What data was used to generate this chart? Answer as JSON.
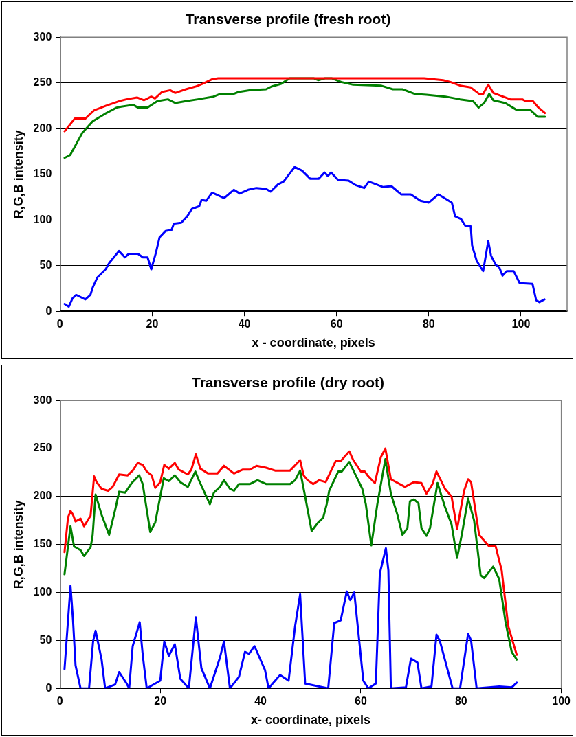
{
  "chart_data": [
    {
      "type": "line",
      "title": "Transverse profile (fresh root)",
      "xlabel": "x - coordinate, pixels",
      "ylabel": "R,G,B intensity",
      "xlim": [
        0,
        110
      ],
      "xticks": [
        0,
        20,
        40,
        60,
        80,
        100
      ],
      "ylim": [
        0,
        300
      ],
      "yticks": [
        0,
        50,
        100,
        150,
        200,
        250,
        300
      ],
      "grid": "y",
      "legend": false,
      "marker": "none",
      "line_style": "solid",
      "series": [
        {
          "color": "#ff0000",
          "x": [
            1,
            3.2,
            5.5,
            7.4,
            10,
            12.8,
            14.4,
            16.7,
            18.2,
            19.8,
            20.6,
            22.1,
            23.9,
            25,
            27.3,
            29.4,
            30.9,
            33,
            34.3,
            79,
            83.1,
            84.7,
            86.8,
            89.1,
            90.9,
            91.8,
            92.9,
            94,
            95.6,
            97.7,
            100.3,
            101,
            102.6,
            103.6,
            105.2
          ],
          "values": [
            197,
            211,
            211,
            220,
            225,
            230,
            232,
            234,
            231,
            235,
            233,
            240,
            242,
            239,
            243,
            246,
            249,
            254,
            255,
            255,
            253,
            251,
            247,
            245,
            238,
            238,
            248,
            239,
            236,
            232,
            232,
            230,
            230,
            224,
            217
          ]
        },
        {
          "color": "#008000",
          "x": [
            1,
            2.2,
            3.2,
            4.8,
            7.1,
            9.7,
            12.3,
            13.3,
            15.9,
            16.9,
            19,
            21.1,
            23.4,
            25,
            27.3,
            29.9,
            33.3,
            34.8,
            37.7,
            38.7,
            41.3,
            44.7,
            45.9,
            48,
            49.8,
            55.1,
            56,
            57.5,
            59,
            61,
            63.6,
            69.6,
            72.2,
            74.3,
            76.9,
            79.5,
            83.6,
            86.8,
            89.6,
            90.8,
            92,
            93.1,
            94,
            96.6,
            99.2,
            102.1,
            103.6,
            105.2
          ],
          "values": [
            168,
            171,
            180,
            195,
            208,
            216,
            223,
            224,
            226,
            223,
            223,
            230,
            232,
            228,
            230,
            232,
            235,
            238,
            238,
            240,
            242,
            243,
            246,
            249,
            255,
            255,
            253,
            255,
            255,
            251,
            248,
            247,
            243,
            243,
            238,
            237,
            235,
            232,
            230,
            223,
            228,
            238,
            231,
            228,
            220,
            220,
            213,
            213
          ]
        },
        {
          "color": "#0000ff",
          "x": [
            1,
            1.9,
            2.7,
            3.5,
            5.5,
            6.6,
            7.1,
            8.1,
            9.9,
            10.7,
            12.8,
            14.1,
            14.9,
            16.9,
            18,
            19,
            19.8,
            20.8,
            21.6,
            22.9,
            24.2,
            24.7,
            26.3,
            27.6,
            28.6,
            30.2,
            30.7,
            31.7,
            33,
            35.6,
            37.7,
            39,
            40.8,
            42.6,
            44.7,
            45.7,
            47.3,
            48.5,
            50.9,
            52.5,
            54.3,
            56.1,
            57.4,
            58.1,
            58.8,
            60.3,
            62.6,
            64.2,
            66,
            67,
            68.6,
            70.1,
            71.9,
            74,
            76.1,
            78.2,
            80,
            82.1,
            85,
            85.7,
            87,
            88,
            89.1,
            89.4,
            90.4,
            91.8,
            92.9,
            93.5,
            94.5,
            95.3,
            96,
            96.9,
            98.4,
            99.7,
            102.5,
            103.3,
            104,
            105.1
          ],
          "values": [
            8,
            5,
            14,
            18,
            13,
            18,
            26,
            37,
            46,
            53,
            66,
            59,
            63,
            63,
            59,
            59,
            46,
            64,
            81,
            88,
            89,
            96,
            97,
            104,
            112,
            115,
            122,
            121,
            130,
            124,
            133,
            129,
            133,
            135,
            134,
            131,
            139,
            142,
            158,
            154,
            145,
            145,
            152,
            148,
            152,
            144,
            143,
            138,
            135,
            142,
            139,
            136,
            137,
            128,
            128,
            121,
            119,
            128,
            119,
            104,
            101,
            93,
            93,
            72,
            55,
            44,
            77,
            61,
            51,
            48,
            39,
            44,
            44,
            31,
            30,
            12,
            10,
            13
          ]
        }
      ]
    },
    {
      "type": "line",
      "title": "Transverse profile (dry root)",
      "xlabel": "x- coordinate, pixels",
      "ylabel": "R,G,B intensity",
      "xlim": [
        0,
        100
      ],
      "xticks": [
        0,
        20,
        40,
        60,
        80,
        100
      ],
      "ylim": [
        0,
        300
      ],
      "yticks": [
        0,
        50,
        100,
        150,
        200,
        250,
        300
      ],
      "grid": "y",
      "legend": false,
      "marker": "none",
      "line_style": "solid",
      "series": [
        {
          "color": "#ff0000",
          "x": [
            0.9,
            1.6,
            2.1,
            2.6,
            3.1,
            4.1,
            4.8,
            6.1,
            6.8,
            7.3,
            8.3,
            9.6,
            10.5,
            11.8,
            13.5,
            14.5,
            15.5,
            16.5,
            17.3,
            18.3,
            19,
            20,
            20.8,
            21.7,
            22.9,
            23.7,
            25.5,
            26.2,
            27.1,
            28,
            29.5,
            31.4,
            32.7,
            34.7,
            36.4,
            37.9,
            39.2,
            41.1,
            42.9,
            45.9,
            47.9,
            48.6,
            49.4,
            50.5,
            51.7,
            53,
            55,
            56,
            57.7,
            58.5,
            60,
            60.8,
            61.5,
            62.8,
            64,
            64.9,
            66,
            68.8,
            70.6,
            72.1,
            73.1,
            74.3,
            75.1,
            76.8,
            78.1,
            79.2,
            80.6,
            81.4,
            82,
            83.6,
            85.6,
            86.9,
            88.1,
            89.4,
            91.1
          ],
          "values": [
            142,
            178,
            185,
            181,
            174,
            177,
            169,
            180,
            221,
            215,
            208,
            206,
            210,
            223,
            222,
            227,
            235,
            233,
            226,
            222,
            209,
            215,
            233,
            229,
            235,
            228,
            223,
            228,
            244,
            229,
            224,
            224,
            232,
            224,
            228,
            228,
            232,
            230,
            227,
            227,
            238,
            222,
            217,
            213,
            217,
            215,
            237,
            237,
            247,
            238,
            226,
            226,
            221,
            214,
            241,
            250,
            218,
            210,
            215,
            214,
            203,
            213,
            226,
            208,
            200,
            166,
            206,
            218,
            215,
            160,
            148,
            148,
            123,
            65,
            35
          ]
        },
        {
          "color": "#008000",
          "x": [
            0.9,
            2.1,
            2.8,
            4.1,
            4.8,
            6.1,
            6.5,
            7.1,
            8.3,
            9.8,
            11,
            11.8,
            13,
            14.3,
            15.8,
            16.5,
            18,
            19,
            20.7,
            21.7,
            22.9,
            24,
            25.5,
            27,
            27.7,
            29.9,
            30.7,
            31.9,
            32.7,
            33.9,
            34.7,
            35.7,
            37.9,
            39.4,
            41.1,
            45.9,
            46.9,
            47.9,
            48.9,
            50.2,
            51.5,
            52.5,
            53.2,
            53.7,
            55.5,
            56.2,
            57.7,
            59,
            60.3,
            61,
            62.1,
            63.3,
            64.9,
            66,
            67.3,
            68.3,
            69.3,
            69.8,
            70.6,
            71.5,
            72.1,
            73.1,
            73.8,
            74.6,
            75.3,
            76.8,
            78.1,
            79.2,
            80.1,
            81.4,
            82.6,
            83.9,
            84.6,
            86.4,
            87.6,
            88.9,
            90.1,
            91.1
          ],
          "values": [
            119,
            169,
            148,
            144,
            138,
            147,
            159,
            202,
            181,
            160,
            186,
            205,
            204,
            214,
            222,
            213,
            163,
            173,
            219,
            216,
            222,
            215,
            210,
            226,
            217,
            192,
            204,
            210,
            217,
            208,
            206,
            213,
            213,
            217,
            213,
            213,
            217,
            227,
            200,
            164,
            173,
            178,
            192,
            206,
            226,
            226,
            236,
            222,
            208,
            192,
            149,
            192,
            239,
            203,
            181,
            160,
            167,
            195,
            197,
            193,
            167,
            159,
            167,
            192,
            214,
            189,
            171,
            136,
            159,
            198,
            175,
            118,
            115,
            127,
            114,
            68,
            38,
            30
          ]
        },
        {
          "color": "#0000ff",
          "x": [
            0.9,
            1.3,
            2.1,
            2.6,
            3.1,
            4.1,
            5.8,
            6.6,
            7.1,
            8.3,
            9,
            11,
            11.8,
            13.3,
            13.8,
            14.5,
            15.9,
            16.5,
            17.3,
            20,
            20.8,
            21.7,
            22.9,
            24,
            25.7,
            27.1,
            28.2,
            29.9,
            31.9,
            32.7,
            33.9,
            35.7,
            36.9,
            37.7,
            38.8,
            40.9,
            41.6,
            43.9,
            45.6,
            46.9,
            47.9,
            48.9,
            53.5,
            54.7,
            56,
            57.2,
            57.9,
            58.7,
            60.5,
            61.5,
            63,
            63.8,
            65,
            65.5,
            66,
            69,
            70,
            71.3,
            72.1,
            74.1,
            75.1,
            75.8,
            78.3,
            79.8,
            81.4,
            82,
            83.1,
            87.6,
            90.1,
            91.1
          ],
          "values": [
            20,
            49,
            107,
            71,
            24,
            0,
            0,
            49,
            60,
            30,
            0,
            4,
            17,
            5,
            0,
            44,
            69,
            35,
            0,
            8,
            49,
            34,
            46,
            10,
            0,
            74,
            21,
            0,
            32,
            49,
            0,
            12,
            38,
            36,
            44,
            19,
            0,
            14,
            8,
            65,
            98,
            5,
            0,
            68,
            71,
            101,
            92,
            100,
            8,
            0,
            5,
            120,
            146,
            123,
            0,
            1,
            31,
            27,
            0,
            2,
            56,
            49,
            0,
            0,
            57,
            50,
            0,
            2,
            1,
            6
          ]
        }
      ]
    }
  ]
}
